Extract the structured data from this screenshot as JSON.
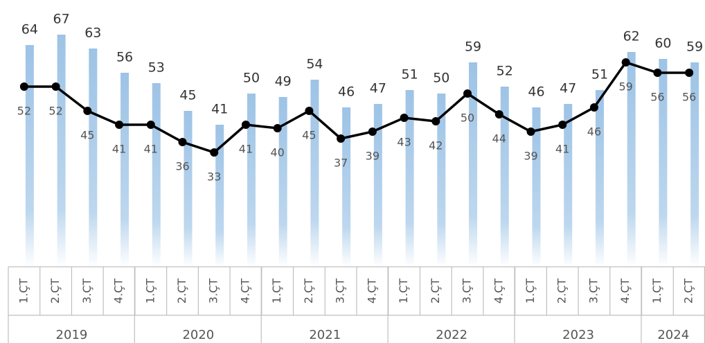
{
  "chart_data": {
    "type": "combo",
    "categories": [
      "1.ÇT",
      "2.ÇT",
      "3.ÇT",
      "4.ÇT",
      "1.ÇT",
      "2.ÇT",
      "3.ÇT",
      "4.ÇT",
      "1.ÇT",
      "2.ÇT",
      "3.ÇT",
      "4.ÇT",
      "1.ÇT",
      "2.ÇT",
      "3.ÇT",
      "4.ÇT",
      "1.ÇT",
      "2.ÇT",
      "3.ÇT",
      "4.ÇT",
      "1.ÇT",
      "2.ÇT"
    ],
    "groups": [
      {
        "label": "2019",
        "count": 4
      },
      {
        "label": "2020",
        "count": 4
      },
      {
        "label": "2021",
        "count": 4
      },
      {
        "label": "2022",
        "count": 4
      },
      {
        "label": "2023",
        "count": 4
      },
      {
        "label": "2024",
        "count": 2
      }
    ],
    "series": [
      {
        "type": "bar",
        "color": "#9dc3e6",
        "values": [
          64,
          67,
          63,
          56,
          53,
          45,
          41,
          50,
          49,
          54,
          46,
          47,
          51,
          50,
          59,
          52,
          46,
          47,
          51,
          62,
          60,
          59
        ]
      },
      {
        "type": "line",
        "color": "#000000",
        "values": [
          52,
          52,
          45,
          41,
          41,
          36,
          33,
          41,
          40,
          45,
          37,
          39,
          43,
          42,
          50,
          44,
          39,
          41,
          46,
          59,
          56,
          56
        ]
      }
    ],
    "ylim": [
      0,
      77
    ]
  }
}
